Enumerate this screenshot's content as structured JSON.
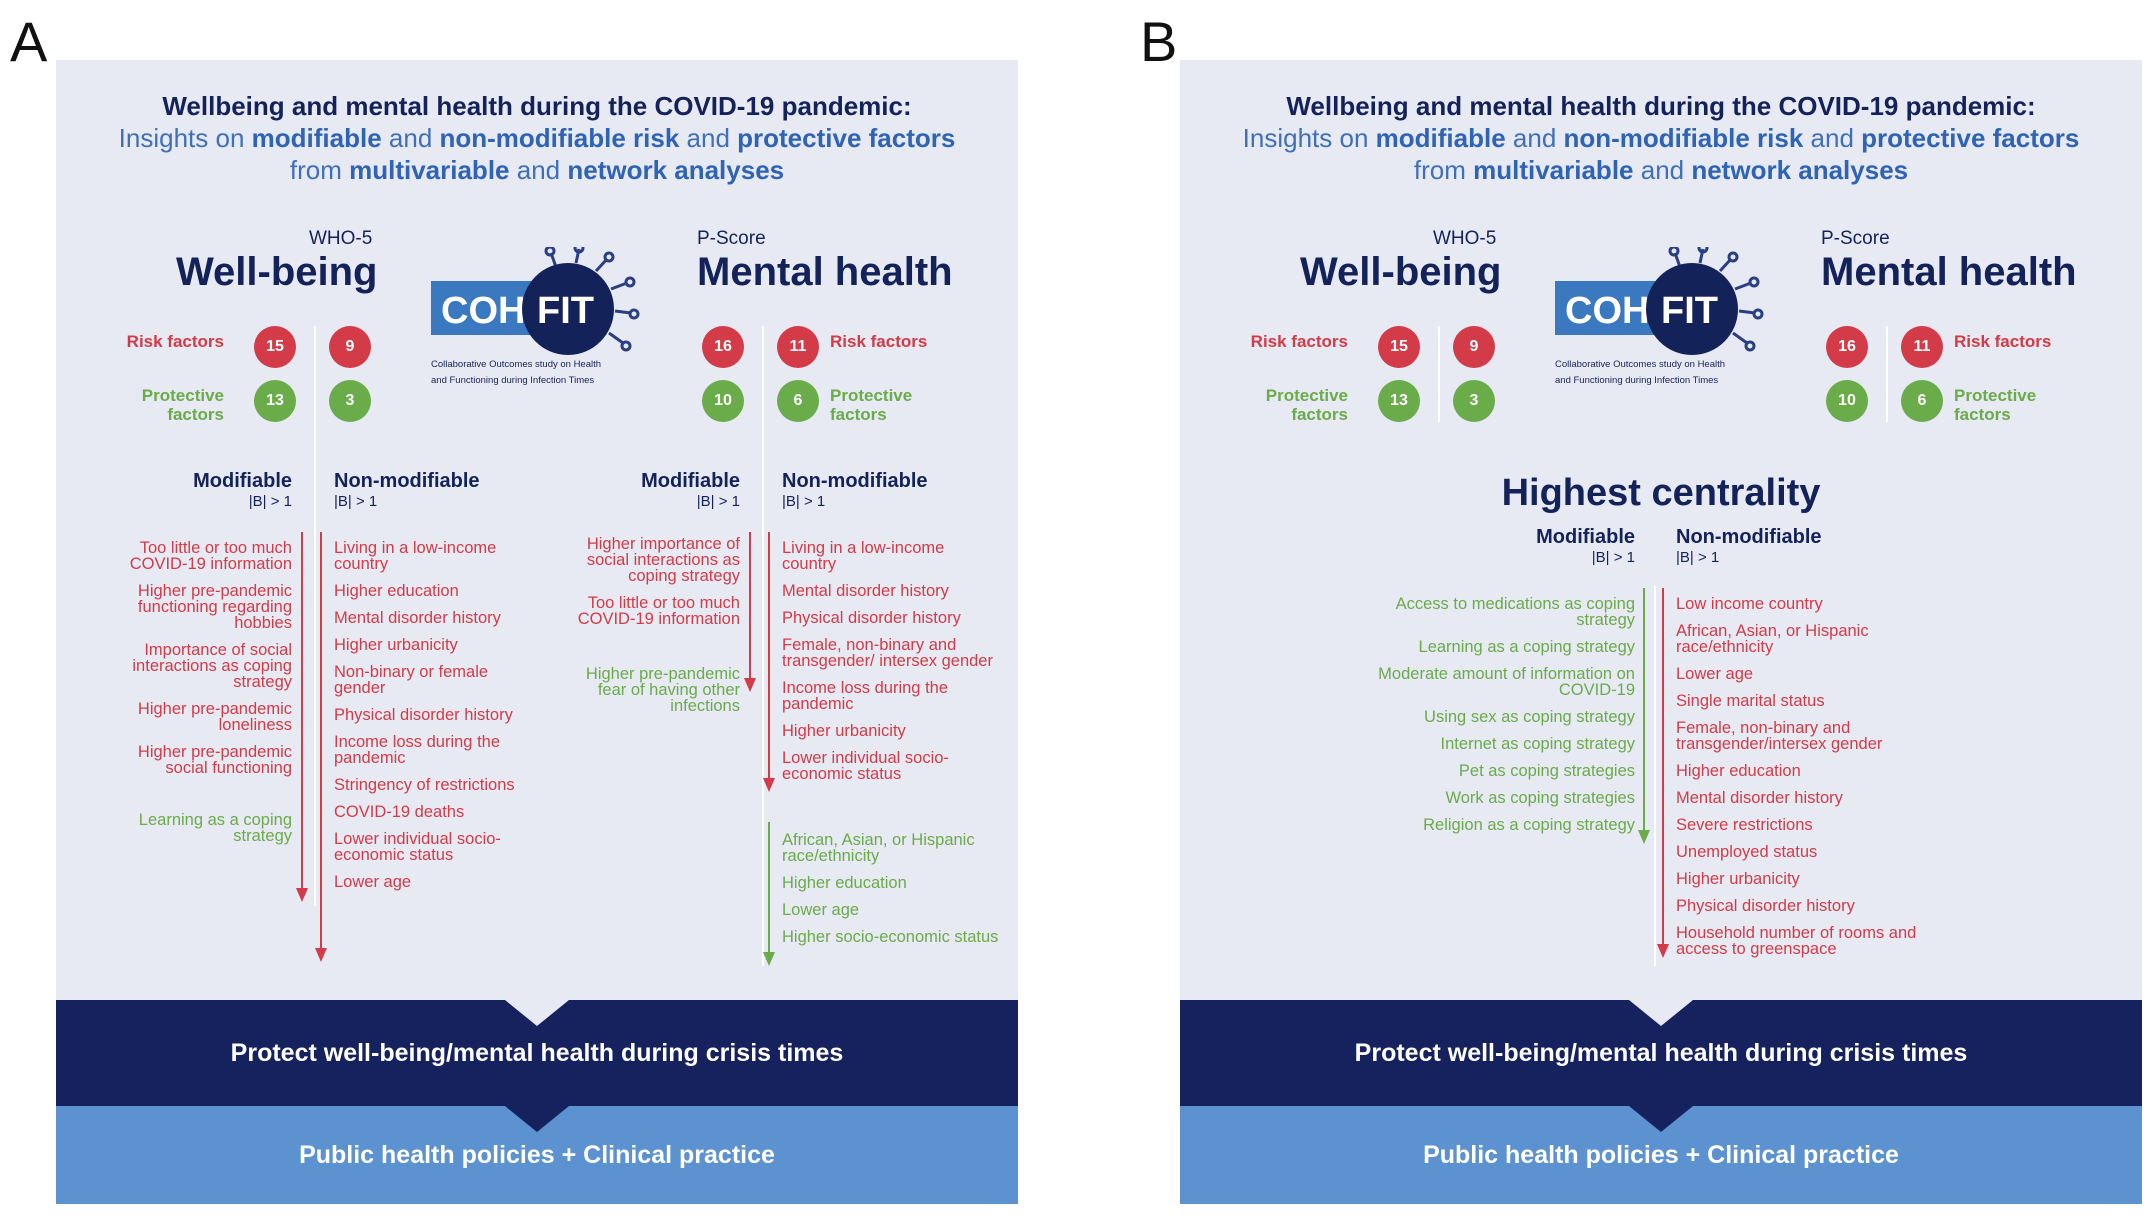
{
  "panelA": {
    "label": "A",
    "heading": {
      "line1": "Wellbeing and mental health during the COVID-19 pandemic:",
      "l2a": "Insights on ",
      "l2b": "modifiable",
      "l2c": " and ",
      "l2d": "non-modifiable risk",
      "l2e": " and ",
      "l2f": "protective factors",
      "l3a": "from ",
      "l3b": "multivariable",
      "l3c": " and ",
      "l3d": "network analyses"
    },
    "wb_sub": "WHO-5",
    "wb_title": "Well-being",
    "mh_sub": "P-Score",
    "mh_title": "Mental health",
    "logo_text": "COH-FIT",
    "logo_caption1": "Collaborative Outcomes study on Health",
    "logo_caption2": "and Functioning during Infection Times",
    "risk_label": "Risk factors",
    "protective_label": "Protective factors",
    "counts": {
      "wb_mod_risk": "15",
      "wb_mod_prot": "13",
      "wb_non_risk": "9",
      "wb_non_prot": "3",
      "mh_mod_risk": "16",
      "mh_mod_prot": "10",
      "mh_non_risk": "11",
      "mh_non_prot": "6"
    },
    "modifiable": "Modifiable",
    "non_modifiable": "Non-modifiable",
    "beta": "|B| > 1",
    "wb_mod_risk_items": [
      "Too little or too much COVID-19 information",
      "Higher pre-pandemic functioning regarding hobbies",
      "Importance of social interactions as coping strategy",
      "Higher pre-pandemic loneliness",
      "Higher pre-pandemic social functioning"
    ],
    "wb_mod_prot_items": [
      "Learning as a coping strategy"
    ],
    "wb_non_risk_items": [
      "Living in a low-income country",
      "Higher education",
      "Mental disorder history",
      "Higher urbanicity",
      "Non-binary or female gender",
      "Physical disorder history",
      "Income loss during the pandemic",
      "Stringency of restrictions",
      "COVID-19 deaths",
      "Lower individual socio-economic status",
      "Lower age"
    ],
    "mh_mod_risk_items": [
      "Higher importance of social interactions as coping strategy",
      "Too little or too much COVID-19 information"
    ],
    "mh_mod_prot_items": [
      "Higher pre-pandemic fear of having other infections"
    ],
    "mh_non_risk_items": [
      "Living in a low-income country",
      "Mental disorder history",
      "Physical disorder history",
      "Female, non-binary and transgender/ intersex gender",
      "Income loss during the pandemic",
      "Higher urbanicity",
      "Lower individual socio-economic status"
    ],
    "mh_non_prot_items": [
      "African, Asian, or Hispanic race/ethnicity",
      "Higher education",
      "Lower age",
      "Higher socio-economic status"
    ],
    "band1": "Protect well-being/mental health during crisis times",
    "band2": "Public health policies  + Clinical practice"
  },
  "panelB": {
    "label": "B",
    "highest_centrality": "Highest centrality",
    "mod_items": [
      "Access to medications as coping strategy",
      "Learning as a coping strategy",
      "Moderate amount of information on COVID-19",
      "Using sex as coping strategy",
      "Internet as coping strategy",
      "Pet as coping strategies",
      "Work as coping strategies",
      "Religion as a coping strategy"
    ],
    "non_items": [
      "Low income country",
      "African, Asian, or Hispanic race/ethnicity",
      "Lower age",
      "Single marital status",
      "Female, non-binary and transgender/intersex gender",
      "Higher education",
      "Mental disorder history",
      "Severe restrictions",
      "Unemployed status",
      "Higher urbanicity",
      "Physical disorder history",
      "Household number of rooms and access to greenspace"
    ]
  },
  "colors": {
    "navy": "#15225e",
    "blue": "#2f63b3",
    "red": "#d23b47",
    "green": "#6aab4a",
    "lightblue": "#5b92cf",
    "panel": "#e7e9f3"
  }
}
